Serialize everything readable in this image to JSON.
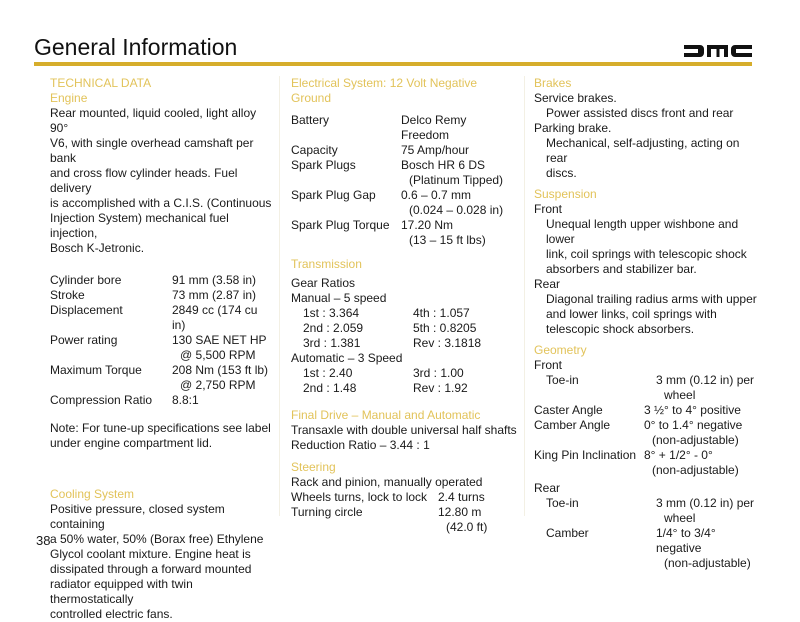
{
  "header": {
    "title": "General Information",
    "logo_text": "DMC",
    "accent_color": "#d6ad2b",
    "heading_color": "#e2c35a"
  },
  "col1": {
    "section": "TECHNICAL DATA",
    "engine_heading": "Engine",
    "engine_lines": [
      "Rear mounted, liquid cooled, light alloy 90°",
      "V6, with single overhead camshaft per bank",
      "and cross flow cylinder heads. Fuel delivery",
      "is accomplished with a C.I.S. (Continuous",
      "Injection System) mechanical fuel injection,",
      "Bosch K-Jetronic."
    ],
    "specs": [
      {
        "k": "Cylinder bore",
        "v": "91 mm (3.58 in)"
      },
      {
        "k": "Stroke",
        "v": "73 mm (2.87 in)"
      },
      {
        "k": "Displacement",
        "v": "2849 cc (174 cu in)"
      },
      {
        "k": "Power rating",
        "v": "130 SAE NET HP",
        "v2": "@ 5,500 RPM"
      },
      {
        "k": "Maximum Torque",
        "v": "208 Nm (153 ft lb)",
        "v2": "@ 2,750 RPM"
      },
      {
        "k": "Compression Ratio",
        "v": "8.8:1"
      }
    ],
    "note_lines": [
      "Note: For tune-up specifications see label",
      "under engine compartment lid."
    ],
    "cooling_heading": "Cooling System",
    "cooling_lines": [
      "Positive pressure, closed system containing",
      "a 50% water, 50% (Borax free) Ethylene",
      "Glycol coolant mixture. Engine heat is",
      "dissipated through a forward mounted",
      "radiator equipped with twin thermostatically",
      "controlled electric fans."
    ]
  },
  "col2": {
    "electrical_heading": [
      "Electrical System: 12 Volt Negative",
      "Ground"
    ],
    "electrical": [
      {
        "k": "Battery",
        "v": "Delco Remy Freedom"
      },
      {
        "k": "Capacity",
        "v": "75 Amp/hour"
      },
      {
        "k": "Spark Plugs",
        "v": "Bosch HR 6 DS",
        "v2": "(Platinum Tipped)"
      },
      {
        "k": "Spark Plug Gap",
        "v": "0.6 – 0.7 mm",
        "v2": "(0.024 – 0.028 in)"
      },
      {
        "k": "Spark Plug Torque",
        "v": "17.20 Nm",
        "v2": "(13 – 15 ft lbs)"
      }
    ],
    "transmission_heading": "Transmission",
    "gear_ratios": "Gear Ratios",
    "manual": "Manual – 5 speed",
    "manual_rows": [
      {
        "a": "1st : 3.364",
        "b": "4th : 1.057"
      },
      {
        "a": "2nd : 2.059",
        "b": "5th : 0.8205"
      },
      {
        "a": "3rd : 1.381",
        "b": "Rev : 3.1818"
      }
    ],
    "automatic": "Automatic – 3 Speed",
    "auto_rows": [
      {
        "a": "1st : 2.40",
        "b": "3rd : 1.00"
      },
      {
        "a": "2nd : 1.48",
        "b": "Rev : 1.92"
      }
    ],
    "final_heading": "Final Drive – Manual and Automatic",
    "final_lines": [
      "Transaxle with double universal half shafts",
      "Reduction Ratio – 3.44 : 1"
    ],
    "steering_heading": "Steering",
    "steering_line": "Rack and pinion, manually operated",
    "steering": [
      {
        "k": "Wheels turns, lock to lock",
        "v": "2.4 turns"
      },
      {
        "k": "Turning circle",
        "v": "12.80 m",
        "v2": "(42.0 ft)"
      }
    ]
  },
  "col3": {
    "brakes_heading": "Brakes",
    "service": "Service brakes.",
    "service_desc": "Power assisted discs front and rear",
    "parking": "Parking brake.",
    "parking_desc": [
      "Mechanical, self-adjusting, acting on rear",
      "discs."
    ],
    "suspension_heading": "Suspension",
    "front": "Front",
    "front_desc": [
      "Unequal length upper wishbone and lower",
      "link, coil springs with telescopic shock",
      "absorbers and stabilizer bar."
    ],
    "rear": "Rear",
    "rear_desc": [
      "Diagonal trailing radius arms with upper",
      "and lower links, coil springs with",
      "telescopic shock absorbers."
    ],
    "geometry_heading": "Geometry",
    "geo_front": "Front",
    "geo_front_rows": [
      {
        "k": "Toe-in",
        "v": "3 mm (0.12 in) per",
        "v2": "wheel",
        "ind": true
      },
      {
        "k": "Caster Angle",
        "v": "3 ½° to 4° positive"
      },
      {
        "k": "Camber Angle",
        "v": "0° to 1.4° negative",
        "v2": "(non-adjustable)"
      },
      {
        "k": "King Pin Inclination",
        "v": "8° + 1/2° - 0°",
        "v2": "(non-adjustable)"
      }
    ],
    "geo_rear": "Rear",
    "geo_rear_rows": [
      {
        "k": "Toe-in",
        "v": "3 mm (0.12 in) per",
        "v2": "wheel",
        "ind": true
      },
      {
        "k": "Camber",
        "v": "1/4° to 3/4° negative",
        "v2": "(non-adjustable)",
        "ind": true
      }
    ]
  },
  "footer": {
    "page_number": "38"
  }
}
